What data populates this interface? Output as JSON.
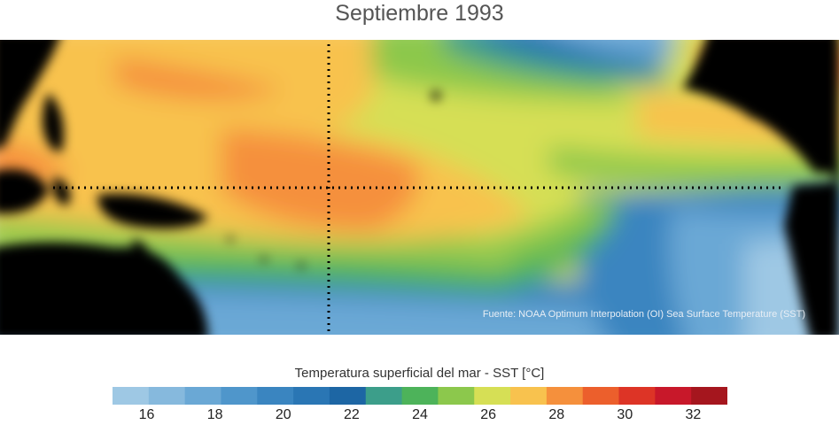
{
  "title": "Septiembre 1993",
  "source_note": "Fuente: NOAA Optimum Interpolation (OI) Sea Surface Temperature (SST)",
  "colorbar": {
    "title": "Temperatura superficial del mar - SST  [°C]",
    "min": 15,
    "max": 33,
    "step": 1,
    "tick_labels": [
      "16",
      "18",
      "20",
      "22",
      "24",
      "26",
      "28",
      "30",
      "32"
    ],
    "tick_values": [
      16,
      18,
      20,
      22,
      24,
      26,
      28,
      30,
      32
    ],
    "colors": [
      "#9ec8e4",
      "#86b9dd",
      "#6aa8d5",
      "#4f96cb",
      "#3a85c0",
      "#2a76b4",
      "#1d66a4",
      "#3c9e8a",
      "#4db35a",
      "#8cc84c",
      "#d6df55",
      "#f8c24e",
      "#f5903c",
      "#ec5f2c",
      "#dd3426",
      "#c8182a",
      "#a5161e"
    ]
  },
  "map": {
    "land_color": "#000000",
    "reference_line_style": "dotted"
  }
}
